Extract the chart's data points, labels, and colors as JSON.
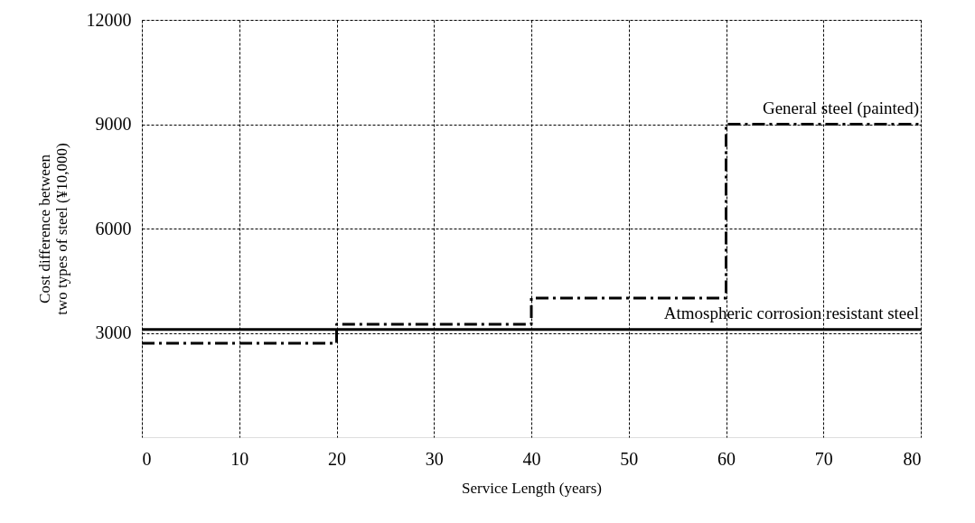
{
  "chart_data": {
    "type": "line",
    "xlabel": "Service Length (years)",
    "ylabel": "Cost difference between\ntwo types of steel (¥10,000)",
    "series": [
      {
        "name": "General steel (painted)",
        "type": "step",
        "color": "#000000",
        "line_style": "dashed",
        "x": [
          0,
          20,
          40,
          60,
          80
        ],
        "values": [
          2700,
          3250,
          4000,
          9000,
          9000
        ]
      },
      {
        "name": "Atmospheric corrosion resistant steel",
        "color": "#000000",
        "line_style": "solid",
        "x": [
          0,
          80
        ],
        "values": [
          3100,
          3100
        ]
      }
    ],
    "xlim": [
      0,
      80
    ],
    "xticks": [
      0,
      10,
      20,
      30,
      40,
      50,
      60,
      70,
      80
    ],
    "ylim": [
      0,
      12000
    ],
    "yticks": [
      3000,
      6000,
      9000,
      12000
    ],
    "grid": true
  }
}
